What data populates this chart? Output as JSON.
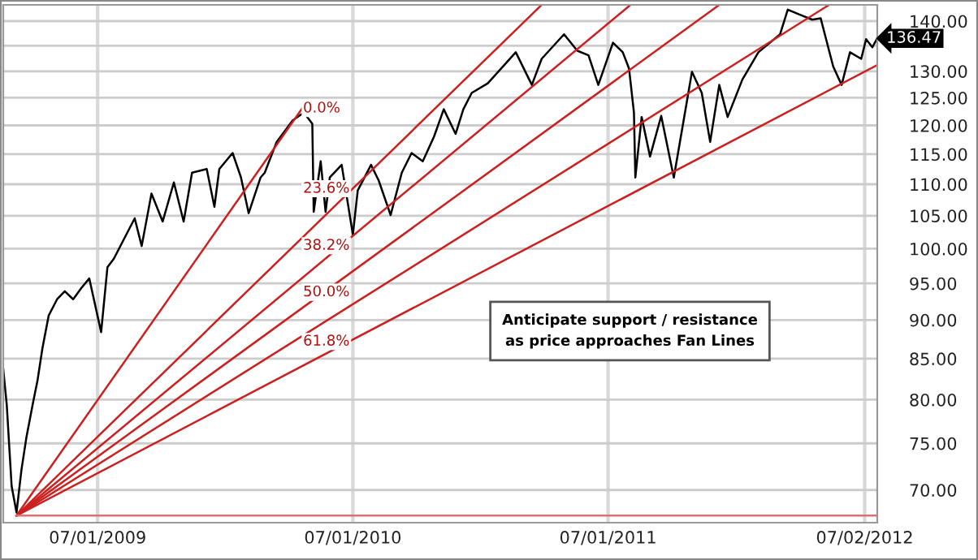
{
  "chart_data": {
    "type": "line",
    "log": true,
    "grid": true,
    "xlim": [
      "2009-02-16",
      "2012-07-20"
    ],
    "ylim": [
      66.7,
      143.4
    ],
    "xticks": [
      {
        "value": "2009-07-01",
        "label": "07/01/2009"
      },
      {
        "value": "2010-07-01",
        "label": "07/01/2010"
      },
      {
        "value": "2011-07-01",
        "label": "07/01/2011"
      },
      {
        "value": "2012-07-02",
        "label": "07/02/2012"
      }
    ],
    "yticks": [
      {
        "value": 70,
        "label": "70.00"
      },
      {
        "value": 75,
        "label": "75.00"
      },
      {
        "value": 80,
        "label": "80.00"
      },
      {
        "value": 85,
        "label": "85.00"
      },
      {
        "value": 90,
        "label": "90.00"
      },
      {
        "value": 95,
        "label": "95.00"
      },
      {
        "value": 100,
        "label": "100.00"
      },
      {
        "value": 105,
        "label": "105.00"
      },
      {
        "value": 110,
        "label": "110.00"
      },
      {
        "value": 115,
        "label": "115.00"
      },
      {
        "value": 120,
        "label": "120.00"
      },
      {
        "value": 125,
        "label": "125.00"
      },
      {
        "value": 130,
        "label": "130.00"
      },
      {
        "value": 135,
        "label": null
      },
      {
        "value": 140,
        "label": "140.00"
      }
    ],
    "series": [
      {
        "color": "#000000",
        "x": [
          "2009-02-16",
          "2009-02-21",
          "2009-02-28",
          "2009-03-07",
          "2009-03-14",
          "2009-03-21",
          "2009-03-30",
          "2009-04-06",
          "2009-04-13",
          "2009-04-22",
          "2009-05-04",
          "2009-05-15",
          "2009-05-27",
          "2009-06-08",
          "2009-06-19",
          "2009-07-06",
          "2009-07-15",
          "2009-07-24",
          "2009-08-05",
          "2009-08-23",
          "2009-09-02",
          "2009-09-16",
          "2009-10-02",
          "2009-10-18",
          "2009-11-01",
          "2009-11-13",
          "2009-12-04",
          "2009-12-15",
          "2009-12-22",
          "2010-01-10",
          "2010-01-22",
          "2010-02-02",
          "2010-02-19",
          "2010-02-25",
          "2010-03-14",
          "2010-04-06",
          "2010-04-22",
          "2010-05-04",
          "2010-05-06",
          "2010-05-16",
          "2010-05-23",
          "2010-05-29",
          "2010-06-15",
          "2010-07-01",
          "2010-07-08",
          "2010-07-27",
          "2010-08-07",
          "2010-08-24",
          "2010-09-09",
          "2010-09-23",
          "2010-10-09",
          "2010-10-25",
          "2010-11-08",
          "2010-11-25",
          "2010-12-06",
          "2010-12-18",
          "2011-01-10",
          "2011-02-19",
          "2011-03-14",
          "2011-03-28",
          "2011-04-29",
          "2011-05-18",
          "2011-06-03",
          "2011-06-17",
          "2011-07-08",
          "2011-07-22",
          "2011-07-31",
          "2011-08-07",
          "2011-08-09",
          "2011-08-18",
          "2011-08-30",
          "2011-09-15",
          "2011-10-03",
          "2011-10-15",
          "2011-10-29",
          "2011-11-12",
          "2011-11-24",
          "2011-12-07",
          "2011-12-19",
          "2012-01-09",
          "2012-02-01",
          "2012-03-03",
          "2012-03-14",
          "2012-03-30",
          "2012-04-18",
          "2012-04-30",
          "2012-05-18",
          "2012-05-30",
          "2012-06-11",
          "2012-06-27",
          "2012-07-04",
          "2012-07-13",
          "2012-07-20"
        ],
        "values": [
          83.7,
          79.4,
          70.4,
          67.7,
          72.1,
          75.6,
          79.4,
          82.3,
          86.3,
          90.6,
          92.8,
          93.9,
          92.8,
          94.4,
          95.7,
          88.4,
          97.3,
          98.5,
          100.9,
          104.6,
          100.4,
          108.5,
          104.1,
          110.3,
          104.1,
          111.9,
          112.5,
          106.4,
          112.5,
          115.2,
          111.1,
          105.4,
          111.1,
          111.9,
          117.1,
          120.9,
          122.3,
          120.3,
          105.6,
          113.8,
          105.6,
          111.1,
          113.2,
          102.1,
          109.0,
          113.2,
          110.6,
          105.1,
          111.9,
          115.2,
          113.8,
          118.0,
          122.9,
          118.5,
          122.9,
          125.9,
          127.7,
          133.7,
          127.4,
          132.4,
          137.3,
          134.0,
          133.1,
          127.4,
          135.6,
          133.7,
          130.5,
          122.3,
          111.1,
          121.5,
          114.6,
          121.7,
          111.1,
          119.4,
          129.9,
          125.9,
          117.1,
          127.4,
          121.5,
          128.4,
          133.7,
          137.3,
          142.4,
          141.4,
          140.3,
          140.6,
          130.9,
          127.4,
          133.7,
          132.4,
          136.3,
          134.7,
          136.47
        ]
      },
      {
        "color": "#cc1f1f",
        "x": [
          "2009-03-07",
          "2010-04-22"
        ],
        "values": [
          67.4,
          123.5
        ]
      },
      {
        "color": "#cc1f1f",
        "x": [
          "2009-03-07",
          "2011-03-28"
        ],
        "values": [
          67.4,
          143.4
        ]
      },
      {
        "color": "#cc1f1f",
        "x": [
          "2009-03-07",
          "2011-08-02"
        ],
        "values": [
          67.4,
          143.4
        ]
      },
      {
        "color": "#cc1f1f",
        "x": [
          "2009-03-07",
          "2011-12-07"
        ],
        "values": [
          67.4,
          143.4
        ]
      },
      {
        "color": "#cc1f1f",
        "x": [
          "2009-03-07",
          "2012-05-12"
        ],
        "values": [
          67.4,
          143.4
        ]
      },
      {
        "color": "#cc1f1f",
        "x": [
          "2009-03-07",
          "2012-07-20"
        ],
        "values": [
          67.4,
          131.2
        ]
      },
      {
        "color": "#d97373",
        "x": [
          "2009-03-07",
          "2012-07-20"
        ],
        "values": [
          67.4,
          67.4
        ]
      }
    ],
    "annotations": [
      "0.0%",
      "23.6%",
      "38.2%",
      "50.0%",
      "61.8%",
      "Anticipate support / resistance\nas price approaches Fan Lines",
      {
        "text": "136.47",
        "x": "2012-07-20",
        "y": 136.47
      }
    ]
  }
}
